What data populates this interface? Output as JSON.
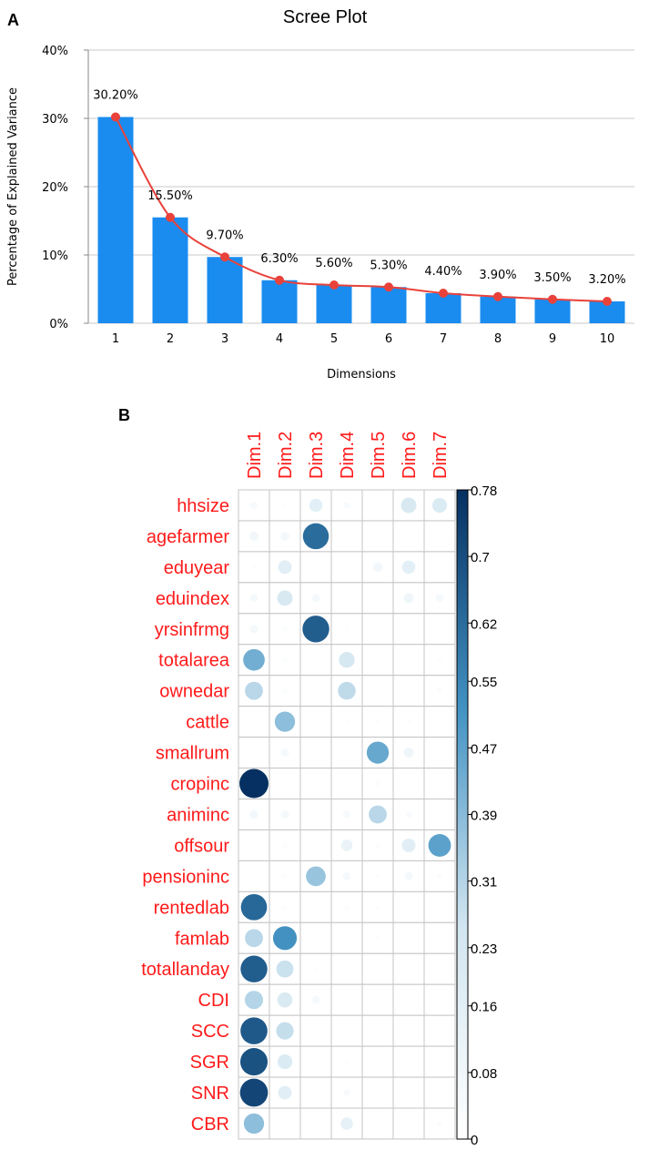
{
  "panels": {
    "a_letter": "A",
    "b_letter": "B"
  },
  "chart_data": [
    {
      "type": "bar",
      "title": "Scree Plot",
      "xlabel": "Dimensions",
      "ylabel": "Percentage of Explained Variance",
      "categories": [
        "1",
        "2",
        "3",
        "4",
        "5",
        "6",
        "7",
        "8",
        "9",
        "10"
      ],
      "values": [
        30.2,
        15.5,
        9.7,
        6.3,
        5.6,
        5.3,
        4.4,
        3.9,
        3.5,
        3.2
      ],
      "value_labels": [
        "30.20%",
        "15.50%",
        "9.70%",
        "6.30%",
        "5.60%",
        "5.30%",
        "4.40%",
        "3.90%",
        "3.50%",
        "3.20%"
      ],
      "ylim": [
        0,
        40
      ],
      "y_ticks": [
        0,
        10,
        20,
        30,
        40
      ],
      "y_tick_labels": [
        "0%",
        "10%",
        "20%",
        "30%",
        "40%"
      ],
      "overlay_line": true,
      "grid": true,
      "colors": {
        "bar": "#1a8cf0",
        "line": "#e9423a",
        "grid": "#c8c8c8"
      }
    },
    {
      "type": "heatmap",
      "style": "circle-correlation-plot",
      "columns": [
        "Dim.1",
        "Dim.2",
        "Dim.3",
        "Dim.4",
        "Dim.5",
        "Dim.6",
        "Dim.7"
      ],
      "rows": [
        "hhsize",
        "agefarmer",
        "eduyear",
        "eduindex",
        "yrsinfrmg",
        "totalarea",
        "ownedar",
        "cattle",
        "smallrum",
        "cropinc",
        "animinc",
        "offsour",
        "pensioninc",
        "rentedlab",
        "famlab",
        "totallanday",
        "CDI",
        "SCC",
        "SGR",
        "SNR",
        "CBR"
      ],
      "values": [
        [
          0.05,
          0.02,
          0.16,
          0.04,
          0.01,
          0.22,
          0.2
        ],
        [
          0.08,
          0.07,
          0.62,
          0.0,
          0.0,
          0.0,
          0.0
        ],
        [
          0.02,
          0.17,
          0.0,
          0.0,
          0.08,
          0.16,
          0.01
        ],
        [
          0.06,
          0.22,
          0.06,
          0.0,
          0.0,
          0.09,
          0.06
        ],
        [
          0.06,
          0.03,
          0.66,
          0.02,
          0.0,
          0.0,
          0.0
        ],
        [
          0.43,
          0.03,
          0.01,
          0.23,
          0.0,
          0.0,
          0.02
        ],
        [
          0.3,
          0.03,
          0.01,
          0.29,
          0.01,
          0.0,
          0.03
        ],
        [
          0.0,
          0.38,
          0.0,
          0.02,
          0.02,
          0.02,
          0.0
        ],
        [
          0.0,
          0.06,
          0.0,
          0.0,
          0.45,
          0.09,
          0.0
        ],
        [
          0.78,
          0.01,
          0.0,
          0.0,
          0.03,
          0.0,
          0.0
        ],
        [
          0.07,
          0.06,
          0.0,
          0.05,
          0.3,
          0.04,
          0.0
        ],
        [
          0.0,
          0.02,
          0.0,
          0.12,
          0.03,
          0.17,
          0.47
        ],
        [
          0.0,
          0.02,
          0.36,
          0.06,
          0.02,
          0.06,
          0.03
        ],
        [
          0.63,
          0.02,
          0.0,
          0.02,
          0.02,
          0.01,
          0.01
        ],
        [
          0.3,
          0.52,
          0.01,
          0.0,
          0.02,
          0.0,
          0.0
        ],
        [
          0.66,
          0.27,
          0.02,
          0.0,
          0.0,
          0.0,
          0.0
        ],
        [
          0.31,
          0.21,
          0.06,
          0.0,
          0.0,
          0.0,
          0.0
        ],
        [
          0.67,
          0.28,
          0.0,
          0.0,
          0.0,
          0.0,
          0.0
        ],
        [
          0.69,
          0.2,
          0.0,
          0.02,
          0.0,
          0.0,
          0.0
        ],
        [
          0.72,
          0.17,
          0.0,
          0.04,
          0.0,
          0.0,
          0.0
        ],
        [
          0.38,
          0.0,
          0.0,
          0.14,
          0.0,
          0.0,
          0.03
        ]
      ],
      "zlim": [
        0,
        0.78
      ],
      "legend_ticks": [
        0,
        0.08,
        0.16,
        0.23,
        0.31,
        0.39,
        0.47,
        0.55,
        0.62,
        0.7,
        0.78
      ],
      "legend_tick_labels": [
        "0",
        "0.08",
        "0.16",
        "0.23",
        "0.31",
        "0.39",
        "0.47",
        "0.55",
        "0.62",
        "0.7",
        "0.78"
      ],
      "legend_position": "right",
      "colors": {
        "label": "#ff1a1a",
        "grid": "#c4c4c4",
        "low": "#ffffff",
        "mid_low": "#d1e5f0",
        "mid": "#4393c3",
        "high": "#053061"
      }
    }
  ]
}
